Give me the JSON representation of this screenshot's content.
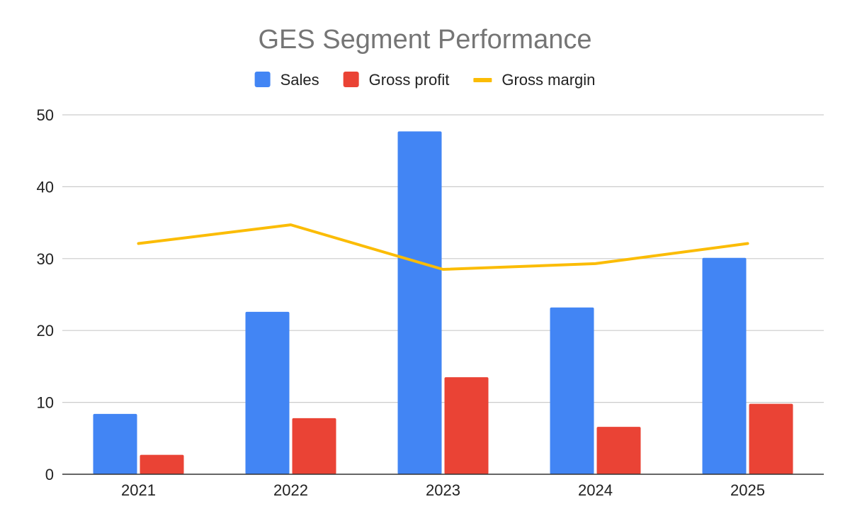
{
  "chart_data": {
    "type": "bar",
    "title": "GES Segment Performance",
    "categories": [
      "2021",
      "2022",
      "2023",
      "2024",
      "2025"
    ],
    "series": [
      {
        "name": "Sales",
        "kind": "bar",
        "color": "#4285f4",
        "values": [
          8.4,
          22.6,
          47.7,
          23.2,
          30.1
        ]
      },
      {
        "name": "Gross profit",
        "kind": "bar",
        "color": "#ea4335",
        "values": [
          2.7,
          7.8,
          13.5,
          6.6,
          9.8
        ]
      },
      {
        "name": "Gross margin",
        "kind": "line",
        "color": "#fbbc04",
        "values": [
          32.1,
          34.7,
          28.5,
          29.3,
          32.1
        ]
      }
    ],
    "yticks": [
      "0",
      "10",
      "20",
      "30",
      "40",
      "50"
    ],
    "ylim": [
      0,
      50
    ],
    "grid": true,
    "legend_position": "top-center",
    "xlabel": "",
    "ylabel": ""
  }
}
